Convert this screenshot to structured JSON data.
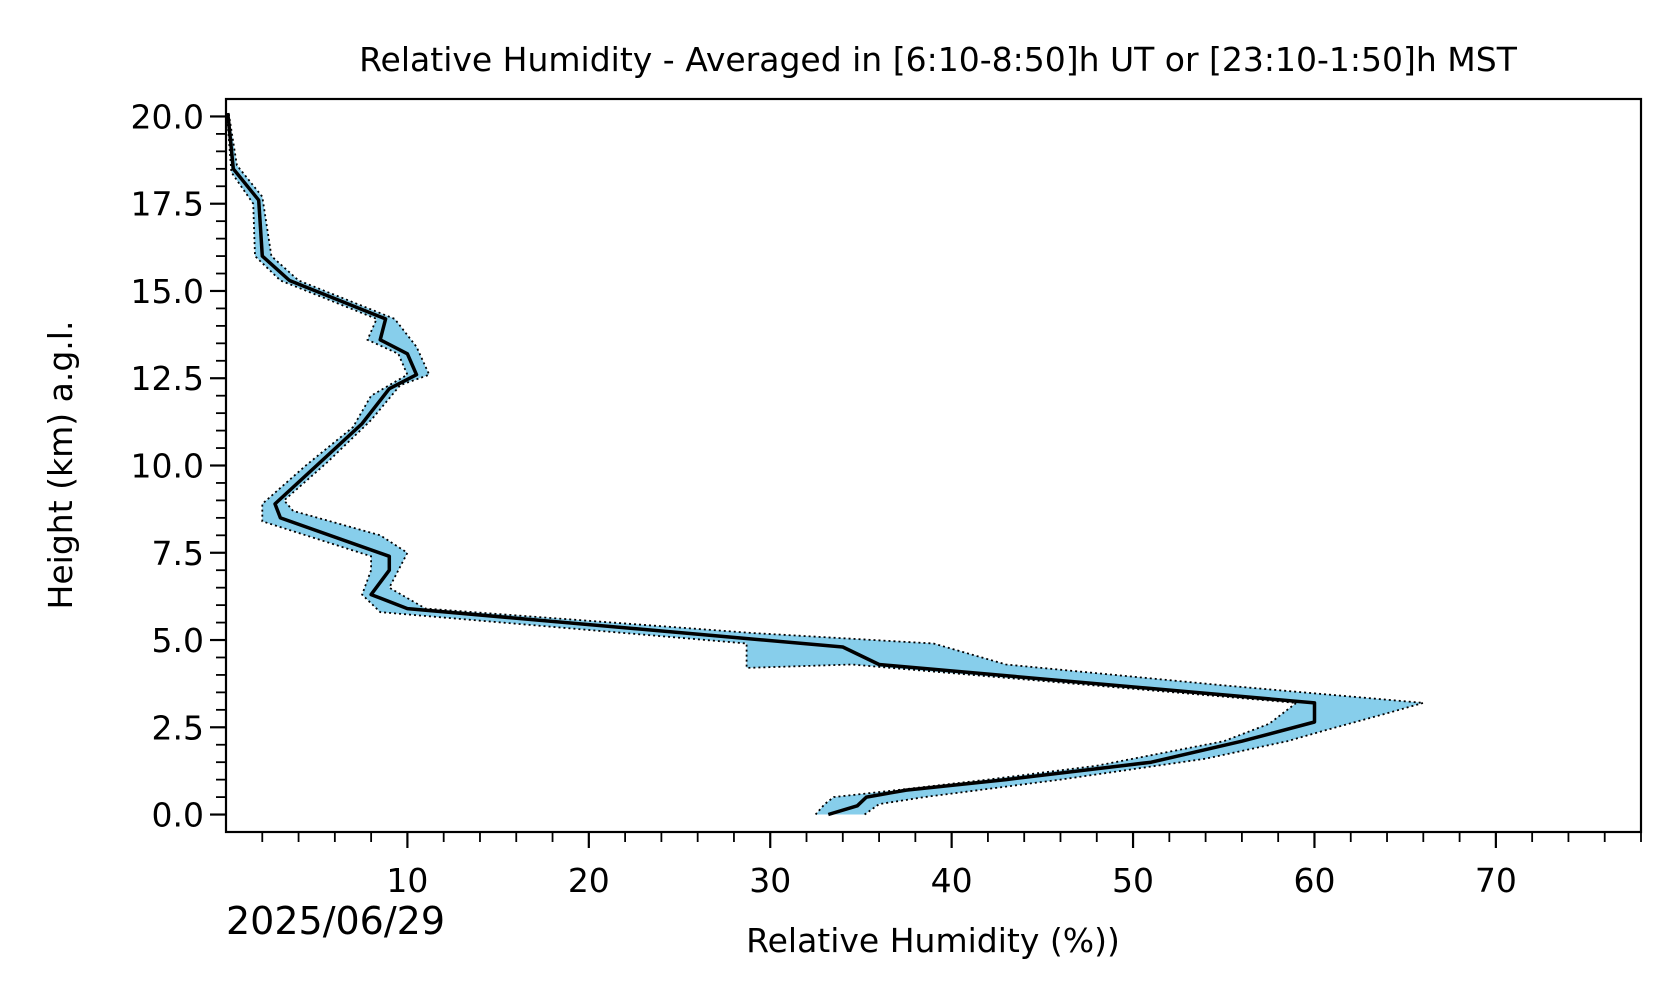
{
  "chart_data": {
    "type": "line",
    "title": "Relative Humidity - Averaged in [6:10-8:50]h UT or [23:10-1:50]h MST",
    "xlabel": "Relative Humidity (%))",
    "ylabel": "Height (km) a.g.l.",
    "date_label": "2025/06/29",
    "xlim": [
      0,
      78
    ],
    "ylim": [
      -0.5,
      20.5
    ],
    "xticks": [
      10,
      20,
      30,
      40,
      50,
      60,
      70
    ],
    "xtick_labels": [
      "10",
      "20",
      "30",
      "40",
      "50",
      "60",
      "70"
    ],
    "yticks": [
      0,
      2.5,
      5,
      7.5,
      10,
      12.5,
      15,
      17.5,
      20
    ],
    "ytick_labels": [
      "0.0",
      "2.5",
      "5.0",
      "7.5",
      "10.0",
      "12.5",
      "15.0",
      "17.5",
      "20.0"
    ],
    "grid": false,
    "colors": {
      "mean": "#000000",
      "band": "#87ceeb",
      "band_edge": "#000000"
    },
    "series": [
      {
        "role": "mean",
        "points": [
          [
            33.2,
            0.0
          ],
          [
            34.8,
            0.25
          ],
          [
            35.3,
            0.5
          ],
          [
            37.5,
            0.7
          ],
          [
            43.0,
            1.0
          ],
          [
            51.0,
            1.5
          ],
          [
            56.0,
            2.1
          ],
          [
            60.0,
            2.65
          ],
          [
            60.0,
            3.2
          ],
          [
            36.0,
            4.3
          ],
          [
            34.0,
            4.8
          ],
          [
            10.0,
            5.9
          ],
          [
            8.0,
            6.3
          ],
          [
            9.0,
            7.0
          ],
          [
            9.0,
            7.4
          ],
          [
            3.0,
            8.5
          ],
          [
            2.7,
            8.9
          ],
          [
            5.0,
            10.0
          ],
          [
            7.5,
            11.2
          ],
          [
            9.0,
            12.2
          ],
          [
            10.5,
            12.6
          ],
          [
            10.0,
            13.2
          ],
          [
            8.5,
            13.6
          ],
          [
            8.8,
            14.2
          ],
          [
            3.5,
            15.3
          ],
          [
            2.0,
            16.0
          ],
          [
            1.8,
            17.6
          ],
          [
            0.4,
            18.5
          ],
          [
            0.1,
            20.1
          ]
        ]
      },
      {
        "role": "upper",
        "points": [
          [
            35.2,
            0.0
          ],
          [
            36.0,
            0.3
          ],
          [
            38.5,
            0.5
          ],
          [
            46.0,
            1.0
          ],
          [
            54.0,
            1.6
          ],
          [
            58.5,
            2.1
          ],
          [
            60.5,
            2.4
          ],
          [
            64.0,
            2.9
          ],
          [
            66.0,
            3.2
          ],
          [
            55.0,
            3.7
          ],
          [
            43.0,
            4.3
          ],
          [
            39.0,
            4.9
          ],
          [
            29.0,
            5.2
          ],
          [
            11.0,
            5.9
          ],
          [
            9.0,
            6.5
          ],
          [
            10.0,
            7.5
          ],
          [
            8.5,
            8.0
          ],
          [
            3.7,
            8.7
          ],
          [
            3.2,
            9.0
          ],
          [
            5.6,
            10.1
          ],
          [
            8.0,
            11.3
          ],
          [
            9.6,
            12.3
          ],
          [
            11.2,
            12.6
          ],
          [
            10.5,
            13.4
          ],
          [
            9.3,
            14.2
          ],
          [
            4.0,
            15.3
          ],
          [
            2.5,
            16.0
          ],
          [
            2.0,
            17.7
          ],
          [
            0.6,
            18.6
          ],
          [
            0.15,
            20.1
          ]
        ]
      },
      {
        "role": "lower",
        "points": [
          [
            32.5,
            0.0
          ],
          [
            33.0,
            0.3
          ],
          [
            33.5,
            0.5
          ],
          [
            37.0,
            0.7
          ],
          [
            42.0,
            1.0
          ],
          [
            48.0,
            1.4
          ],
          [
            55.0,
            2.1
          ],
          [
            57.5,
            2.6
          ],
          [
            59.0,
            3.2
          ],
          [
            34.5,
            4.3
          ],
          [
            28.7,
            4.2
          ],
          [
            28.7,
            4.9
          ],
          [
            8.5,
            5.8
          ],
          [
            7.5,
            6.3
          ],
          [
            8.0,
            7.0
          ],
          [
            8.0,
            7.4
          ],
          [
            2.0,
            8.4
          ],
          [
            2.0,
            8.9
          ],
          [
            4.4,
            10.0
          ],
          [
            7.0,
            11.1
          ],
          [
            8.0,
            12.0
          ],
          [
            10.0,
            12.6
          ],
          [
            9.5,
            13.2
          ],
          [
            7.8,
            13.6
          ],
          [
            8.3,
            14.2
          ],
          [
            3.0,
            15.3
          ],
          [
            1.6,
            16.0
          ],
          [
            1.5,
            17.5
          ],
          [
            0.3,
            18.4
          ],
          [
            0.05,
            20.1
          ]
        ]
      }
    ]
  }
}
